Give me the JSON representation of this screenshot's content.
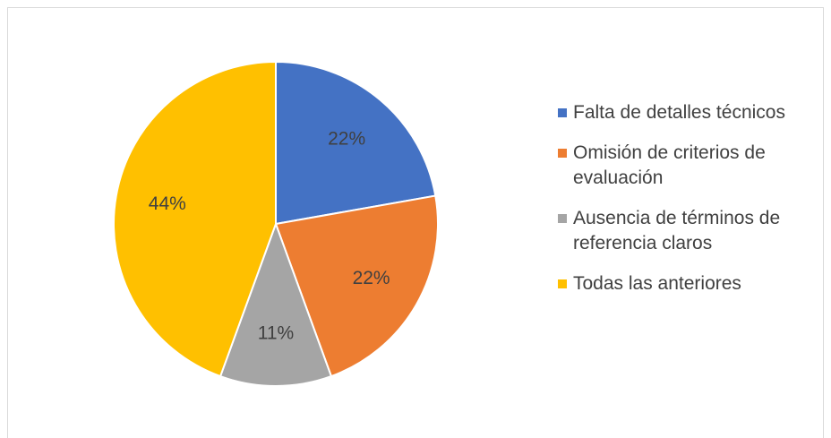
{
  "chart_data": {
    "type": "pie",
    "categories": [
      "Falta de detalles técnicos",
      "Omisión de criterios de evaluación",
      "Ausencia de términos de referencia claros",
      "Todas las anteriores"
    ],
    "values": [
      22,
      22,
      11,
      44
    ],
    "value_labels": [
      "22%",
      "22%",
      "11%",
      "44%"
    ],
    "colors": [
      "#4472c4",
      "#ed7d31",
      "#a5a5a5",
      "#ffc000"
    ],
    "legend": "right"
  }
}
